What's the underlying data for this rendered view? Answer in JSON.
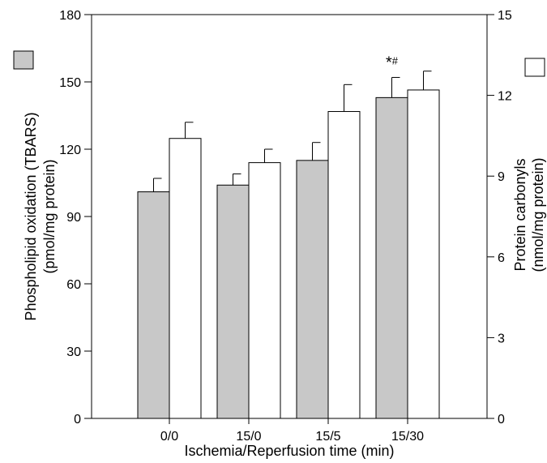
{
  "chart_data": {
    "type": "bar",
    "categories": [
      "0/0",
      "15/0",
      "15/5",
      "15/30"
    ],
    "xlabel": "Ischemia/Reperfusion time (min)",
    "left_axis": {
      "label_line1": "Phospholipid oxidation (TBARS)",
      "label_line2": "(pmol/mg protein)",
      "ylim": [
        0,
        180
      ],
      "ticks": [
        0,
        30,
        60,
        90,
        120,
        150,
        180
      ]
    },
    "right_axis": {
      "label_line1": "Protein carbonyls",
      "label_line2": "(nmol/mg protein)",
      "ylim": [
        0,
        15
      ],
      "ticks": [
        0,
        3,
        6,
        9,
        12,
        15
      ]
    },
    "series": [
      {
        "axis": "left",
        "color": "#c8c8c8",
        "values": [
          101,
          104,
          115,
          143
        ],
        "errors": [
          6,
          5,
          8,
          9
        ]
      },
      {
        "axis": "right",
        "color": "#ffffff",
        "values": [
          10.4,
          9.5,
          11.4,
          12.2
        ],
        "errors": [
          0.6,
          0.5,
          1.0,
          0.7
        ]
      }
    ],
    "annotations": [
      {
        "category_index": 3,
        "series_index": 0,
        "text_star": "*",
        "text_hash": "#"
      }
    ],
    "grid": false,
    "legend": "swatches beside each y-axis: gray square left, white square right"
  }
}
